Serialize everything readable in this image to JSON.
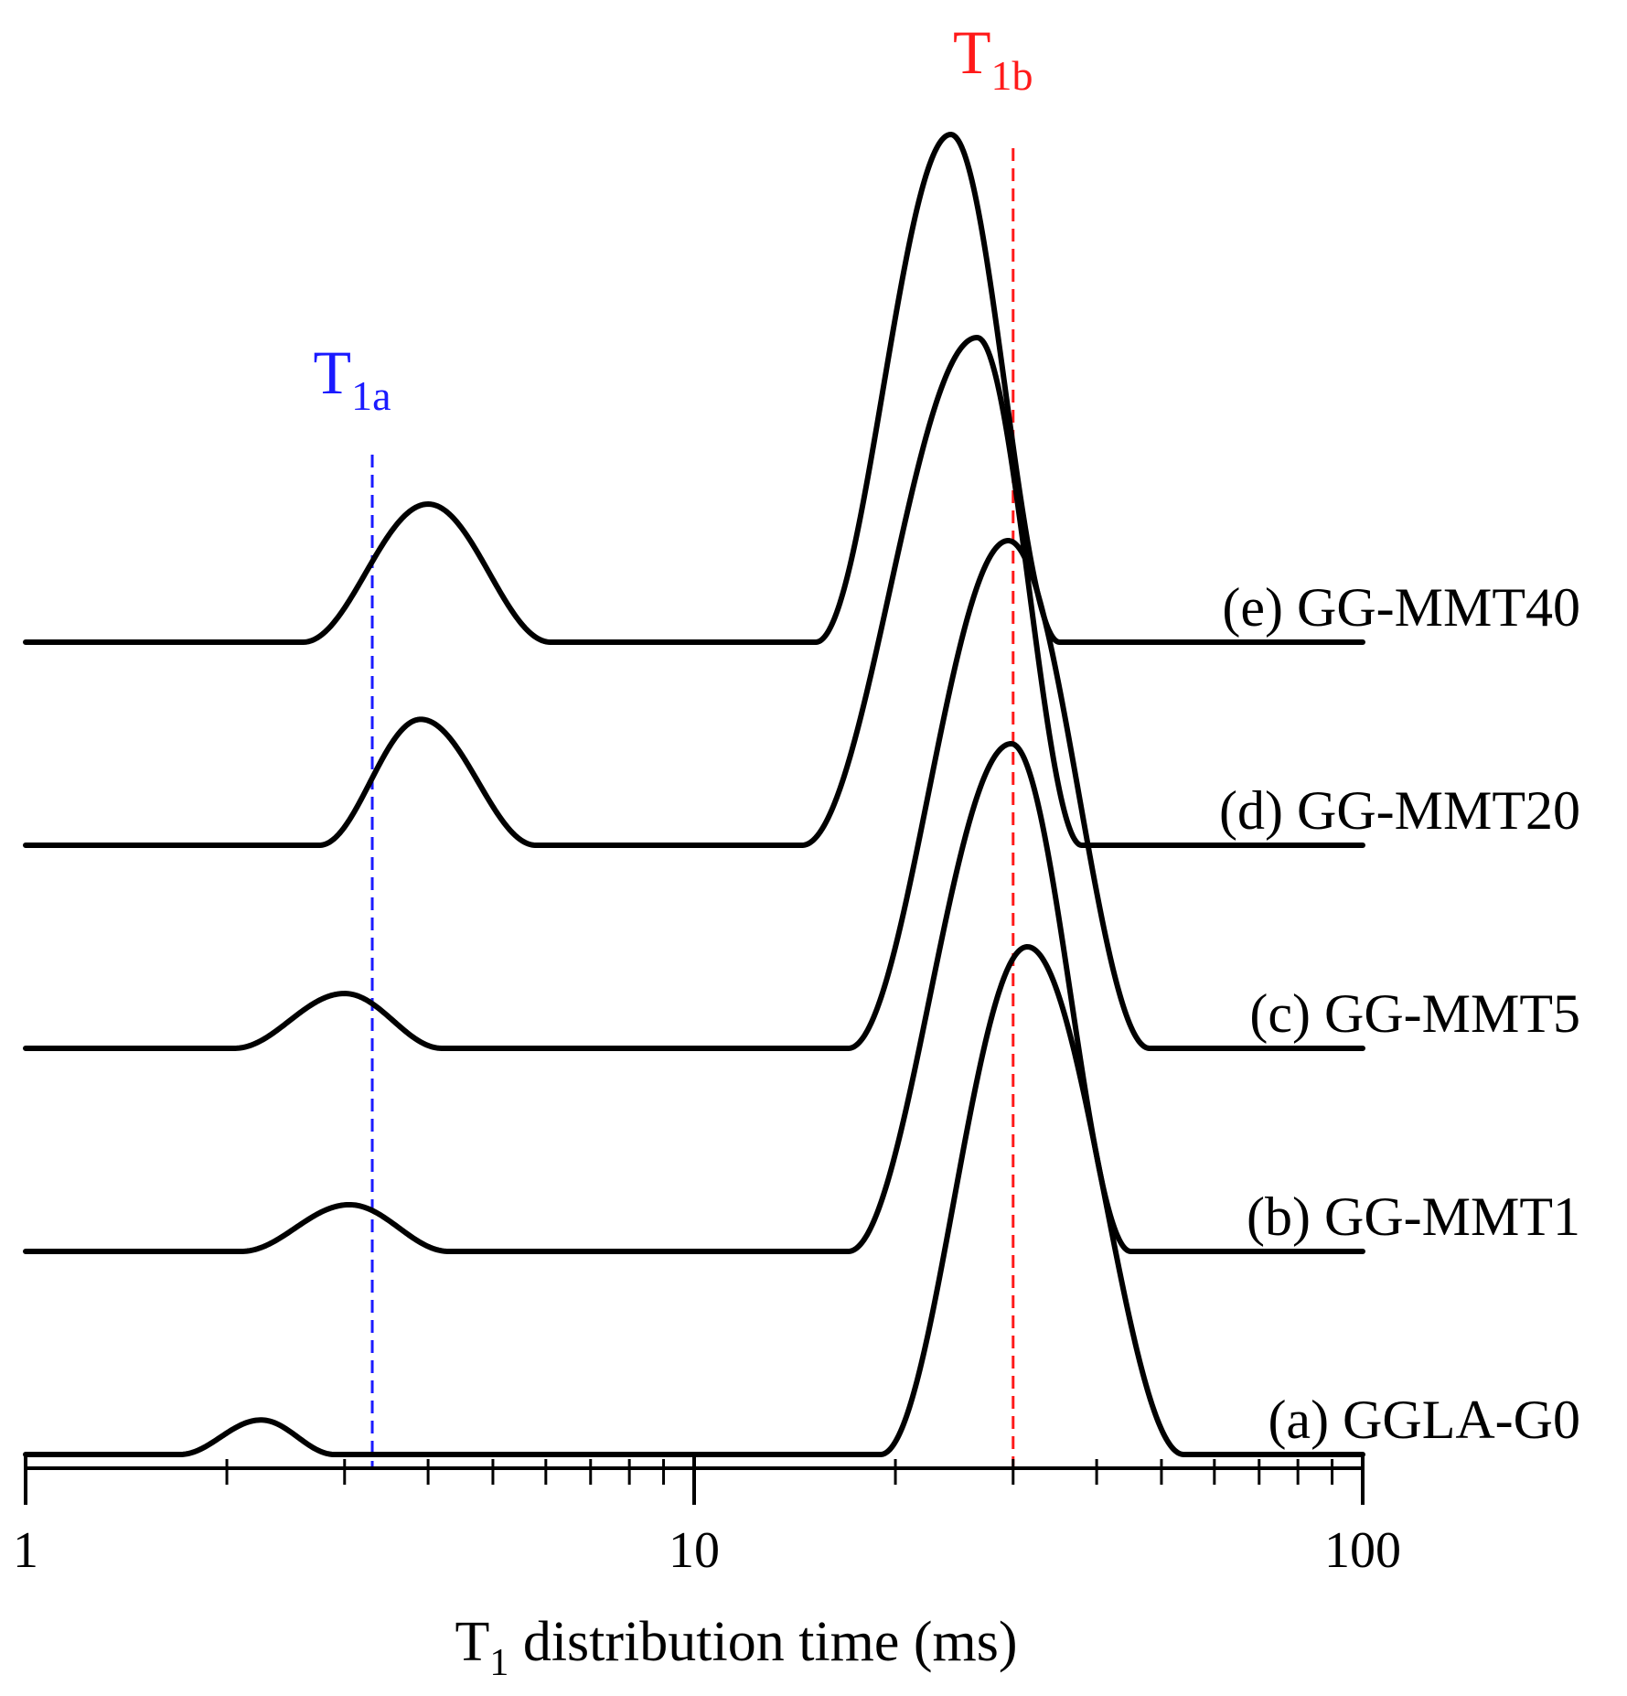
{
  "chart_data": {
    "type": "line",
    "title": "",
    "xlabel": {
      "main": "T",
      "sub": "1",
      "rest": " distribution time (ms)"
    },
    "ylabel": "",
    "xscale": "log",
    "xlim": [
      1,
      100
    ],
    "x_ticks": [
      {
        "value": 1,
        "label": "1"
      },
      {
        "value": 10,
        "label": "10"
      },
      {
        "value": 100,
        "label": "100"
      }
    ],
    "minor_ticks": [
      2,
      3,
      4,
      5,
      6,
      7,
      8,
      9,
      20,
      30,
      40,
      50,
      60,
      70,
      80,
      90
    ],
    "y_axis_visible": false,
    "offset_step": 1,
    "series": [
      {
        "name": "(a) GGLA-G0",
        "offset": 0,
        "components": [
          {
            "from": 1.7,
            "to": 2.9,
            "center": 2.25,
            "height": 0.17
          },
          {
            "from": 19.0,
            "to": 54.0,
            "center": 31.5,
            "height": 2.5
          }
        ]
      },
      {
        "name": "(b) GG-MMT1",
        "offset": 1,
        "components": [
          {
            "from": 2.1,
            "to": 4.3,
            "center": 3.05,
            "height": 0.23
          },
          {
            "from": 17.0,
            "to": 45.0,
            "center": 29.8,
            "height": 2.5
          }
        ]
      },
      {
        "name": "(c) GG-MMT5",
        "offset": 2,
        "components": [
          {
            "from": 2.05,
            "to": 4.2,
            "center": 3.0,
            "height": 0.27
          },
          {
            "from": 17.0,
            "to": 48.0,
            "center": 29.5,
            "height": 2.5
          }
        ]
      },
      {
        "name": "(d) GG-MMT20",
        "offset": 3,
        "components": [
          {
            "from": 2.75,
            "to": 5.8,
            "center": 3.9,
            "height": 0.62
          },
          {
            "from": 14.5,
            "to": 38.0,
            "center": 26.5,
            "height": 2.5
          }
        ]
      },
      {
        "name": "(e) GG-MMT40",
        "offset": 4,
        "components": [
          {
            "from": 2.6,
            "to": 6.1,
            "center": 4.0,
            "height": 0.68
          },
          {
            "from": 15.2,
            "to": 35.2,
            "center": 24.2,
            "height": 2.5
          }
        ]
      }
    ],
    "reference_lines": [
      {
        "x": 3.3,
        "color": "#1a1aff",
        "label_main": "T",
        "label_sub": "1a"
      },
      {
        "x": 30.0,
        "color": "#ff1a1a",
        "label_main": "T",
        "label_sub": "1b"
      }
    ],
    "line_color": "#000000"
  }
}
